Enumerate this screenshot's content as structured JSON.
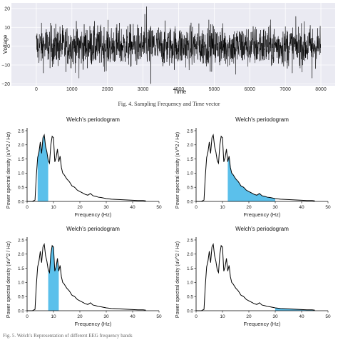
{
  "fig4": {
    "caption": "Fig. 4.   Sampling Frequency and Time vector",
    "chart_data": {
      "type": "line",
      "xlabel": "Time",
      "ylabel": "Voltage",
      "xlim": [
        -700,
        8400
      ],
      "ylim": [
        -21,
        23
      ],
      "xticks": [
        "0",
        "1000",
        "2000",
        "3000",
        "4000",
        "5000",
        "6000",
        "7000",
        "8000"
      ],
      "yticks": [
        "20",
        "10",
        "0",
        "−10",
        "−20"
      ],
      "n_samples": 8000,
      "amplitude_envelope": 10,
      "peak_values": [
        {
          "x": 3100,
          "y": 21
        },
        {
          "x": 3220,
          "y": -20
        },
        {
          "x": 1200,
          "y": -17
        },
        {
          "x": 5600,
          "y": -15
        },
        {
          "x": 7750,
          "y": -17
        },
        {
          "x": 3050,
          "y": 17
        },
        {
          "x": 4850,
          "y": 14
        }
      ],
      "grid": true,
      "color": "#000000"
    }
  },
  "fig5": {
    "caption": "Fig. 5.   Welch's Representation of different EEG frequency bands",
    "chart_data": [
      {
        "type": "area",
        "title": "Welch's periodogram",
        "xlabel": "Frequency (Hz)",
        "ylabel": "Power spectral density (uV^2 / Hz)",
        "xlim": [
          0,
          50
        ],
        "ylim": [
          0,
          2.6
        ],
        "xticks": [
          "0",
          "10",
          "20",
          "30",
          "40",
          "50"
        ],
        "yticks": [
          "0.0",
          "0.5",
          "1.0",
          "1.5",
          "2.0",
          "2.5"
        ],
        "band": [
          4,
          8
        ],
        "band_color": "#5bc0eb"
      },
      {
        "type": "area",
        "title": "Welch's periodogram",
        "xlabel": "Frequency (Hz)",
        "ylabel": "Power spectral density (uV^2 / Hz)",
        "xlim": [
          0,
          50
        ],
        "ylim": [
          0,
          2.6
        ],
        "xticks": [
          "0",
          "10",
          "20",
          "30",
          "40",
          "50"
        ],
        "yticks": [
          "0.0",
          "0.5",
          "1.0",
          "1.5",
          "2.0",
          "2.5"
        ],
        "band": [
          12,
          30
        ],
        "band_color": "#5bc0eb"
      },
      {
        "type": "area",
        "title": "Welch's periodogram",
        "xlabel": "Frequency (Hz)",
        "ylabel": "Power spectral density (uV^2 / Hz)",
        "xlim": [
          0,
          50
        ],
        "ylim": [
          0,
          2.6
        ],
        "xticks": [
          "0",
          "10",
          "20",
          "30",
          "40",
          "50"
        ],
        "yticks": [
          "0.0",
          "0.5",
          "1.0",
          "1.5",
          "2.0",
          "2.5"
        ],
        "band": [
          8,
          12
        ],
        "band_color": "#5bc0eb"
      },
      {
        "type": "area",
        "title": "Welch's periodogram",
        "xlabel": "Frequency (Hz)",
        "ylabel": "Power spectral density (uV^2 / Hz)",
        "xlim": [
          0,
          50
        ],
        "ylim": [
          0,
          2.6
        ],
        "xticks": [
          "0",
          "10",
          "20",
          "30",
          "40",
          "50"
        ],
        "yticks": [
          "0.0",
          "0.5",
          "1.0",
          "1.5",
          "2.0",
          "2.5"
        ],
        "band": [
          30,
          45
        ],
        "band_color": "#5bc0eb"
      }
    ],
    "psd": {
      "x": [
        0,
        1,
        2,
        3,
        3.5,
        4,
        4.5,
        5,
        5.5,
        6,
        6.5,
        7,
        7.5,
        8,
        8.5,
        9,
        9.5,
        10,
        10.5,
        11,
        11.5,
        12,
        12.5,
        13,
        13.5,
        14,
        15,
        16,
        17,
        18,
        19,
        20,
        21,
        22,
        23,
        24,
        25,
        26,
        27,
        28,
        29,
        30,
        32,
        34,
        36,
        38,
        40,
        42,
        44,
        45
      ],
      "y": [
        0,
        0,
        0,
        0.05,
        0.9,
        1.55,
        1.75,
        2.1,
        1.7,
        2.25,
        2.35,
        1.95,
        1.75,
        1.45,
        1.35,
        2.0,
        2.3,
        2.25,
        1.4,
        1.55,
        1.85,
        1.4,
        1.6,
        1.2,
        1.0,
        0.95,
        0.8,
        0.7,
        0.55,
        0.5,
        0.4,
        0.35,
        0.3,
        0.25,
        0.22,
        0.28,
        0.2,
        0.18,
        0.15,
        0.14,
        0.12,
        0.1,
        0.08,
        0.07,
        0.06,
        0.05,
        0.04,
        0.03,
        0.03,
        0.02
      ]
    }
  }
}
